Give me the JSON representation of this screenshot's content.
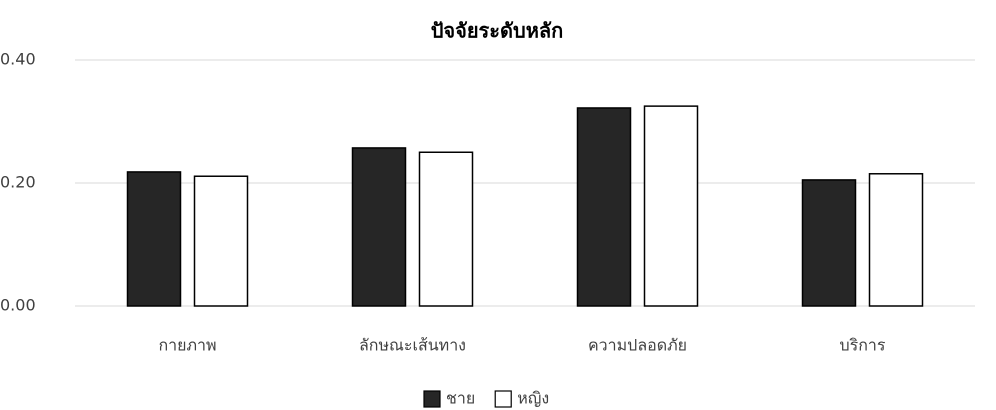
{
  "chart_data": {
    "type": "bar",
    "title": "ปัจจัยระดับหลัก",
    "categories": [
      "กายภาพ",
      "ลักษณะเส้นทาง",
      "ความปลอดภัย",
      "บริการ"
    ],
    "series": [
      {
        "name": "ชาย",
        "color": "#262626",
        "values": [
          0.218,
          0.257,
          0.322,
          0.205
        ]
      },
      {
        "name": "หญิง",
        "color": "#ffffff",
        "values": [
          0.211,
          0.25,
          0.325,
          0.215
        ]
      }
    ],
    "ylim": [
      0,
      0.4
    ],
    "yticks": [
      {
        "value": 0,
        "label": "0.00"
      },
      {
        "value": 0.2,
        "label": "0.20"
      },
      {
        "value": 0.4,
        "label": "0.40"
      }
    ],
    "grid": true,
    "legend": "bottom"
  }
}
